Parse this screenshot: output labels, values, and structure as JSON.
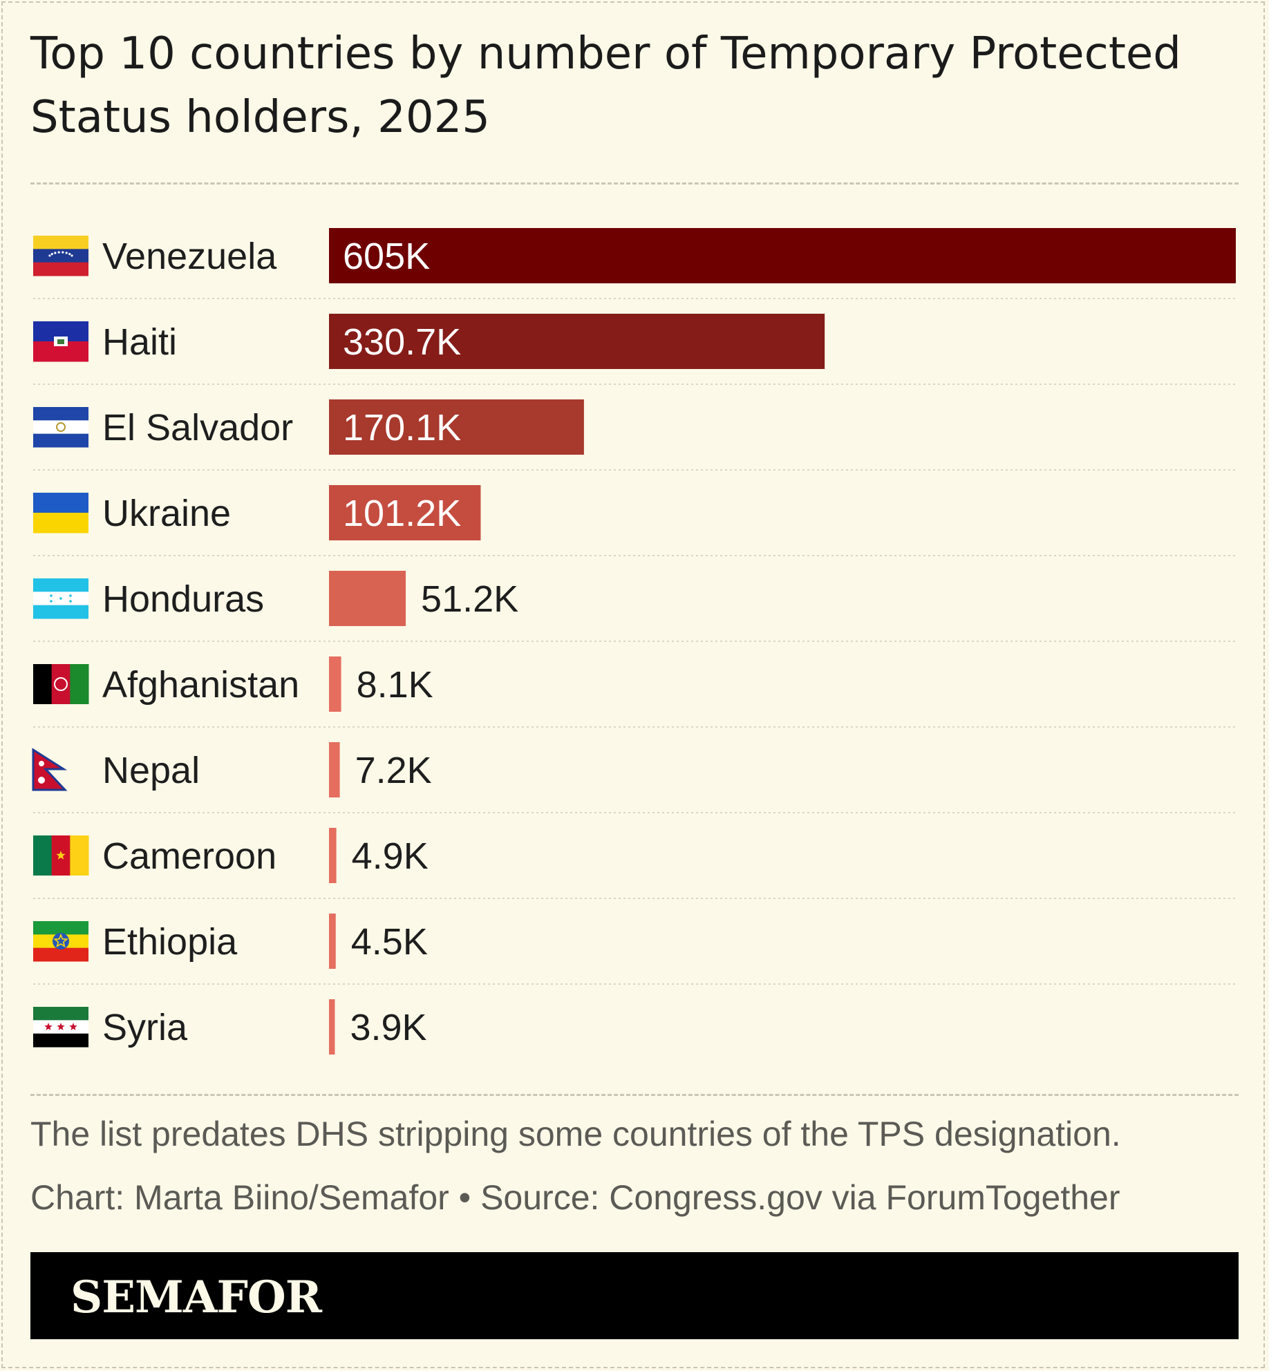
{
  "title": "Top 10 countries by number of Temporary Protected Status holders, 2025",
  "footnote": "The list predates DHS stripping some countries of the TPS designation.",
  "credit": "Chart: Marta Biino/Semafor • Source: Congress.gov via ForumTogether",
  "brand": "SEMAFOR",
  "chart_data": {
    "type": "bar",
    "orientation": "horizontal",
    "xlim": [
      0,
      605000
    ],
    "grid": false,
    "categories": [
      "Venezuela",
      "Haiti",
      "El Salvador",
      "Ukraine",
      "Honduras",
      "Afghanistan",
      "Nepal",
      "Cameroon",
      "Ethiopia",
      "Syria"
    ],
    "values": [
      605000,
      330700,
      170100,
      101200,
      51200,
      8100,
      7200,
      4900,
      4500,
      3900
    ],
    "labels": [
      "605K",
      "330.7K",
      "170.1K",
      "101.2K",
      "51.2K",
      "8.1K",
      "7.2K",
      "4.9K",
      "4.5K",
      "3.9K"
    ],
    "bar_colors": [
      "#6e0000",
      "#851c18",
      "#a8392d",
      "#c54d40",
      "#d96352",
      "#e56e5f",
      "#e56e5f",
      "#e56e5f",
      "#e56e5f",
      "#e56e5f"
    ],
    "flag_icons": [
      "venezuela-flag-icon",
      "haiti-flag-icon",
      "el-salvador-flag-icon",
      "ukraine-flag-icon",
      "honduras-flag-icon",
      "afghanistan-flag-icon",
      "nepal-flag-icon",
      "cameroon-flag-icon",
      "ethiopia-flag-icon",
      "syria-flag-icon"
    ]
  }
}
